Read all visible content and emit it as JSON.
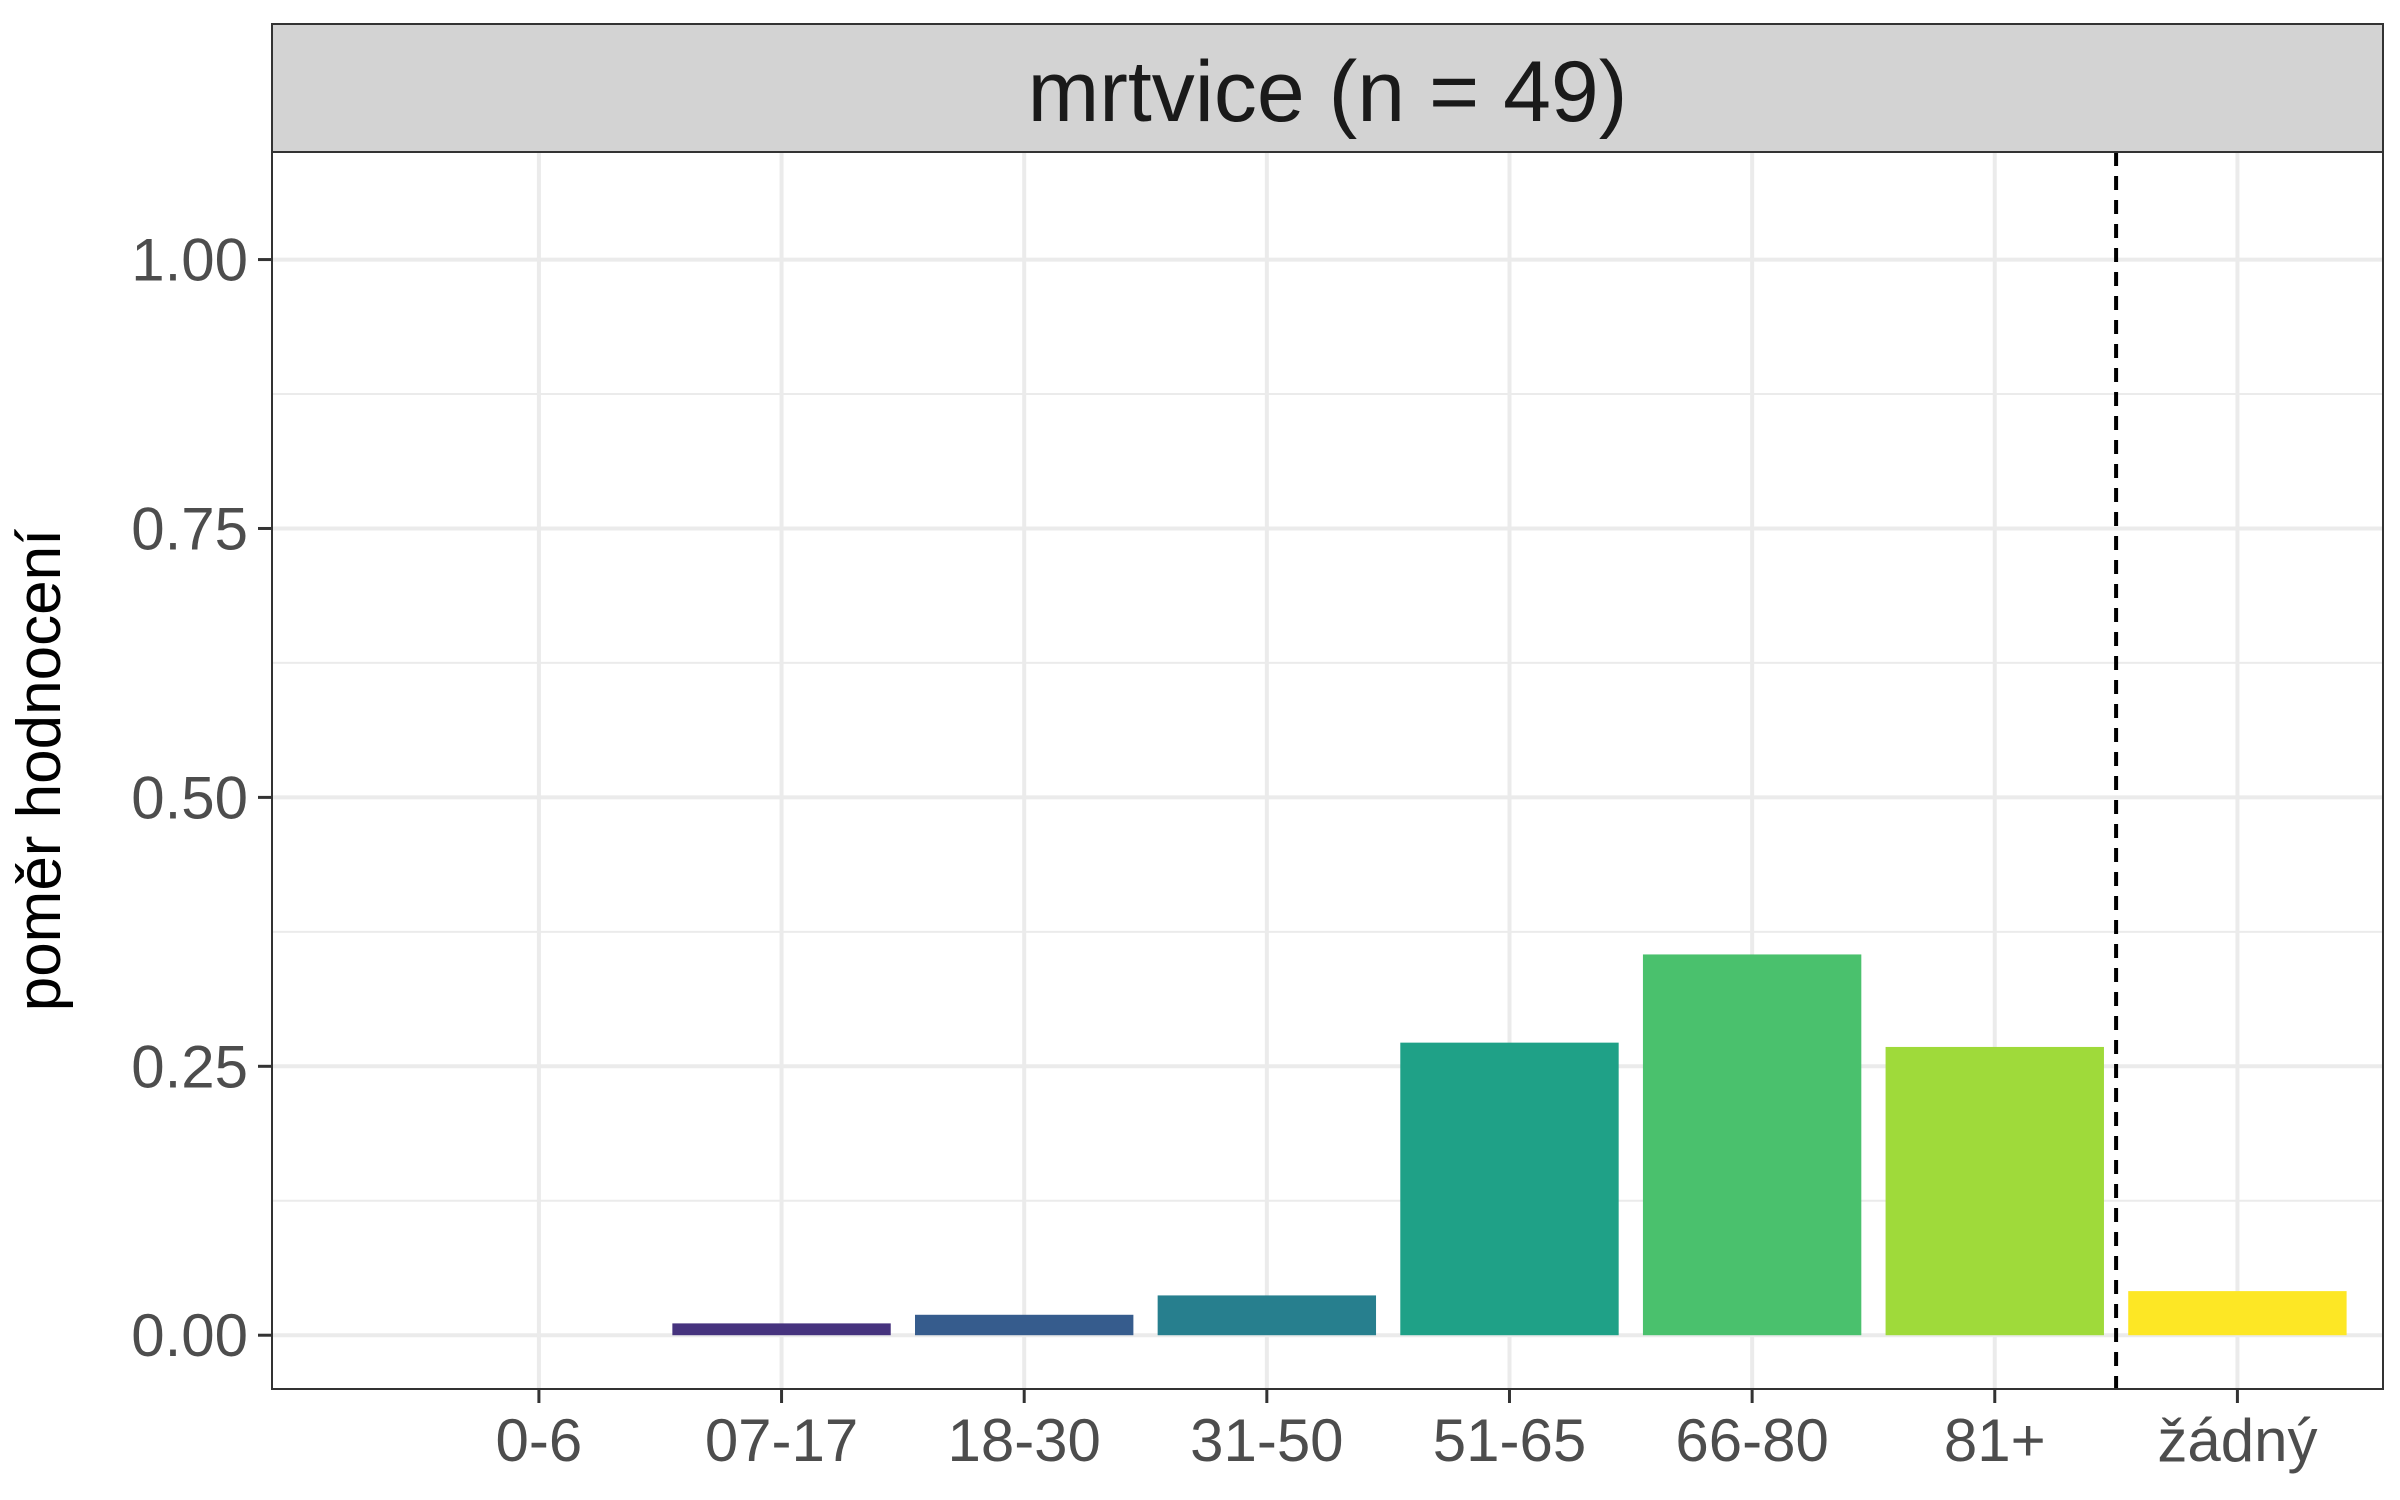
{
  "chart_data": {
    "type": "bar",
    "title": "mrtvice (n = 49)",
    "xlabel": "",
    "ylabel": "poměr hodnocení",
    "categories": [
      "0-6",
      "07-17",
      "18-30",
      "31-50",
      "51-65",
      "66-80",
      "81+",
      "žádný"
    ],
    "values": [
      0.0,
      0.011,
      0.019,
      0.037,
      0.272,
      0.354,
      0.268,
      0.041
    ],
    "colors": [
      "#440154",
      "#46337E",
      "#365C8D",
      "#277F8E",
      "#1FA187",
      "#4AC16D",
      "#9FDA3A",
      "#FDE725"
    ],
    "ylim": [
      -0.05,
      1.1
    ],
    "yticks": [
      0.0,
      0.25,
      0.5,
      0.75,
      1.0
    ],
    "ytick_labels": [
      "0.00",
      "0.25",
      "0.50",
      "0.75",
      "1.00"
    ],
    "reference_line": {
      "style": "dashed",
      "between": [
        "81+",
        "žádný"
      ],
      "color": "#000000"
    },
    "grid": true,
    "legend": "none",
    "panel_strip_color": "#d3d3d3"
  }
}
